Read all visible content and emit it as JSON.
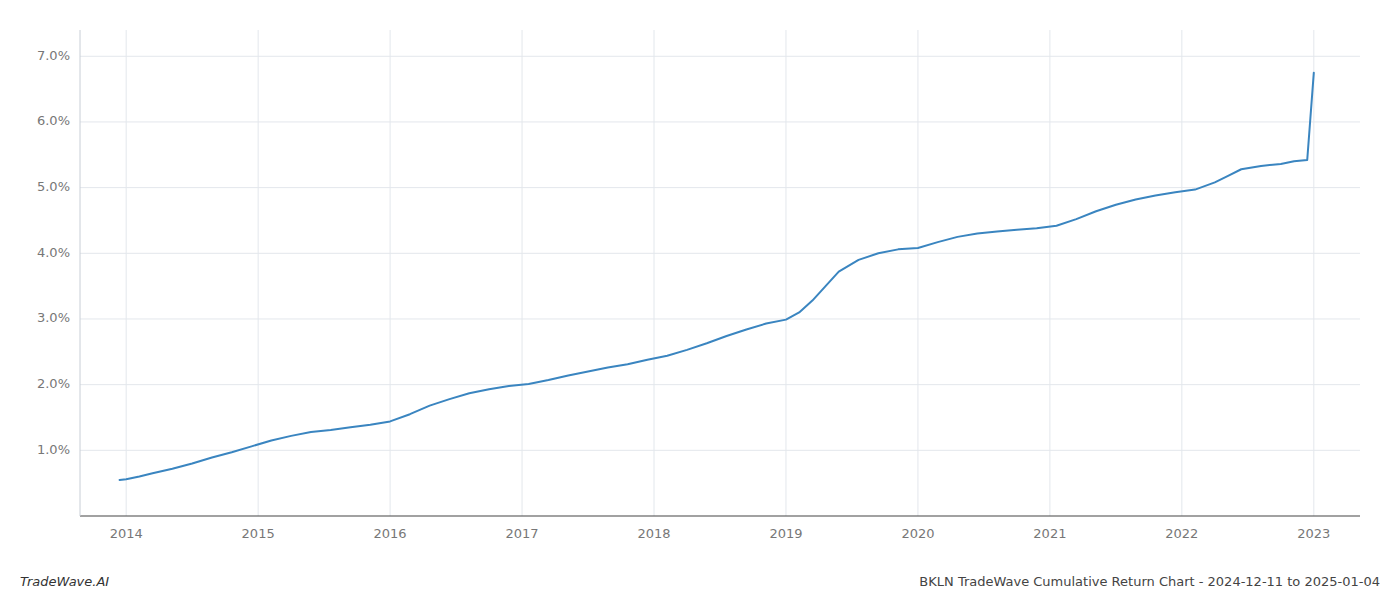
{
  "chart_data": {
    "type": "line",
    "annotations": [
      "TradeWave.AI",
      "BKLN TradeWave Cumulative Return Chart - 2024-12-11 to 2025-01-04"
    ],
    "x": [
      2013.95,
      2014.0,
      2014.1,
      2014.2,
      2014.35,
      2014.5,
      2014.65,
      2014.8,
      2014.95,
      2015.1,
      2015.25,
      2015.4,
      2015.55,
      2015.7,
      2015.85,
      2016.0,
      2016.15,
      2016.3,
      2016.45,
      2016.6,
      2016.75,
      2016.9,
      2017.05,
      2017.2,
      2017.35,
      2017.5,
      2017.65,
      2017.8,
      2017.95,
      2018.1,
      2018.25,
      2018.4,
      2018.55,
      2018.7,
      2018.85,
      2019.0,
      2019.1,
      2019.2,
      2019.3,
      2019.4,
      2019.55,
      2019.7,
      2019.85,
      2020.0,
      2020.15,
      2020.3,
      2020.45,
      2020.6,
      2020.75,
      2020.9,
      2021.05,
      2021.2,
      2021.35,
      2021.5,
      2021.65,
      2021.8,
      2021.95,
      2022.1,
      2022.25,
      2022.35,
      2022.45,
      2022.6,
      2022.75,
      2022.85,
      2022.95,
      2023.0
    ],
    "values": [
      0.55,
      0.56,
      0.6,
      0.65,
      0.72,
      0.8,
      0.89,
      0.97,
      1.06,
      1.15,
      1.22,
      1.28,
      1.31,
      1.35,
      1.39,
      1.44,
      1.55,
      1.68,
      1.78,
      1.87,
      1.93,
      1.98,
      2.01,
      2.07,
      2.14,
      2.2,
      2.26,
      2.31,
      2.38,
      2.44,
      2.53,
      2.63,
      2.74,
      2.84,
      2.93,
      2.99,
      3.1,
      3.28,
      3.5,
      3.72,
      3.9,
      4.0,
      4.06,
      4.08,
      4.17,
      4.25,
      4.3,
      4.33,
      4.36,
      4.38,
      4.42,
      4.52,
      4.64,
      4.74,
      4.82,
      4.88,
      4.93,
      4.97,
      5.08,
      5.18,
      5.28,
      5.33,
      5.36,
      5.4,
      5.42,
      6.75
    ],
    "color": "#3a85c0",
    "xlim": [
      2013.65,
      2023.35
    ],
    "ylim": [
      0.0,
      7.4
    ],
    "xticks": [
      2014,
      2015,
      2016,
      2017,
      2018,
      2019,
      2020,
      2021,
      2022,
      2023
    ],
    "yticks": [
      {
        "value": 1.0,
        "label": "1.0%"
      },
      {
        "value": 2.0,
        "label": "2.0%"
      },
      {
        "value": 3.0,
        "label": "3.0%"
      },
      {
        "value": 4.0,
        "label": "4.0%"
      },
      {
        "value": 5.0,
        "label": "5.0%"
      },
      {
        "value": 6.0,
        "label": "6.0%"
      },
      {
        "value": 7.0,
        "label": "7.0%"
      }
    ],
    "grid": true
  }
}
